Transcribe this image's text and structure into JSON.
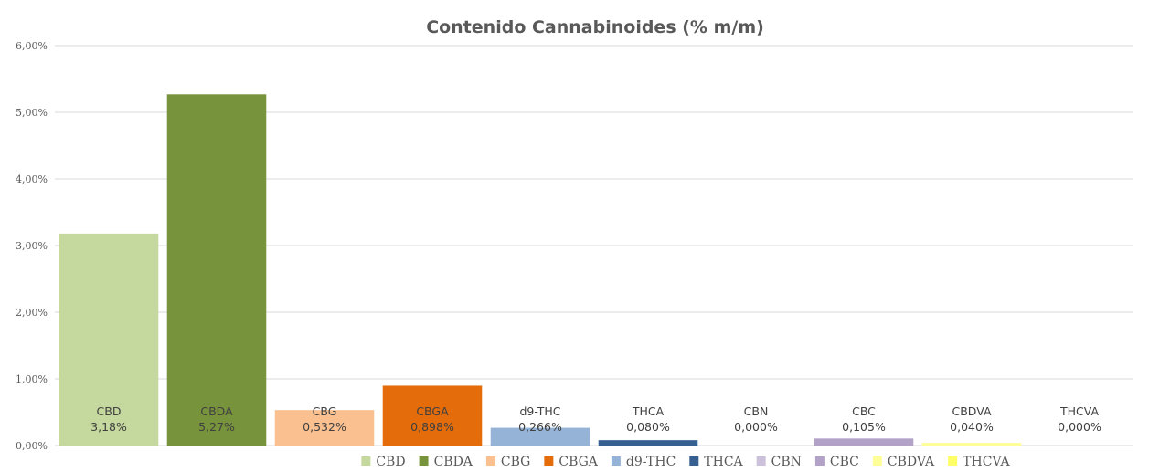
{
  "chart_data": {
    "type": "bar",
    "title": "Contenido Cannabinoides (% m/m)",
    "categories": [
      "CBD",
      "CBDA",
      "CBG",
      "CBGA",
      "d9-THC",
      "THCA",
      "CBN",
      "CBC",
      "CBDVA",
      "THCVA"
    ],
    "values": [
      3.18,
      5.27,
      0.532,
      0.898,
      0.266,
      0.08,
      0.0,
      0.105,
      0.04,
      0.0
    ],
    "value_labels": [
      "3,18%",
      "5,27%",
      "0,532%",
      "0,898%",
      "0,266%",
      "0,080%",
      "0,000%",
      "0,105%",
      "0,040%",
      "0,000%"
    ],
    "colors": [
      "#c5d89e",
      "#77933c",
      "#fac090",
      "#e46c0a",
      "#95b3d7",
      "#376092",
      "#ccc1da",
      "#b3a2c7",
      "#ffff99",
      "#ffff66"
    ],
    "ylim": [
      0,
      6
    ],
    "yticks": [
      "0,00%",
      "1,00%",
      "2,00%",
      "3,00%",
      "4,00%",
      "5,00%",
      "6,00%"
    ],
    "grid": true,
    "legend_position": "bottom",
    "legend": [
      "CBD",
      "CBDA",
      "CBG",
      "CBGA",
      "d9-THC",
      "THCA",
      "CBN",
      "CBC",
      "CBDVA",
      "THCVA"
    ]
  }
}
